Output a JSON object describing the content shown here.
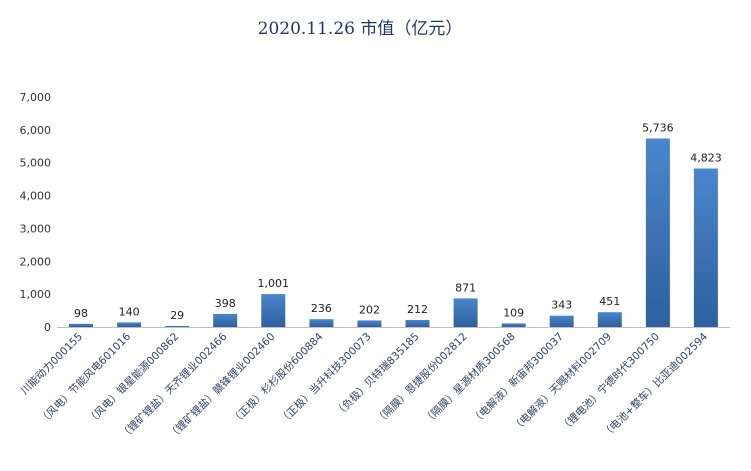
{
  "chart_data": {
    "type": "bar",
    "title": "2020.11.26 市值（亿元）",
    "xlabel": "",
    "ylabel": "",
    "ylim": [
      0,
      7000
    ],
    "yticks": [
      "0",
      "1,000",
      "2,000",
      "3,000",
      "4,000",
      "5,000",
      "6,000",
      "7,000"
    ],
    "grid": false,
    "legend": "none",
    "bar_color": "#2f5f9e",
    "bar_highlight": "#4a86cc",
    "categories": [
      "川能动力000155",
      "（风电）节能风电601016",
      "（风电）银星能源000862",
      "（锂矿锂盐）天齐锂业002466",
      "（锂矿锂盐）赣锋锂业002460",
      "（正极）杉杉股份600884",
      "（正极）当升科技300073",
      "（负极）贝特瑞835185",
      "（隔膜）恩捷股份002812",
      "（隔膜）星源材质300568",
      "（电解液）新宙邦300037",
      "（电解液）天赐材料002709",
      "（锂电池）宁德时代300750",
      "（电池+整车）比亚迪002594"
    ],
    "values": [
      98,
      140,
      29,
      398,
      1001,
      236,
      202,
      212,
      871,
      109,
      343,
      451,
      5736,
      4823
    ],
    "value_labels": [
      "98",
      "140",
      "29",
      "398",
      "1,001",
      "236",
      "202",
      "212",
      "871",
      "109",
      "343",
      "451",
      "5,736",
      "4,823"
    ]
  }
}
